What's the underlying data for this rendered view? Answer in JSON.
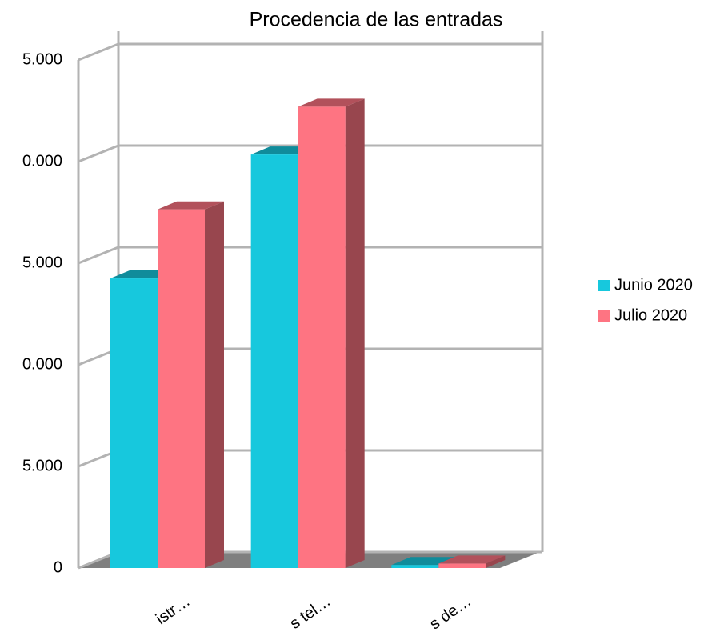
{
  "chart_data": {
    "type": "bar3d",
    "title": "Procedencia de las entradas",
    "categories": [
      "istr…",
      "s tel…",
      "s de…"
    ],
    "series": [
      {
        "name": "Junio 2020",
        "color": "#17c8dd",
        "values": [
          14250,
          20350,
          150
        ]
      },
      {
        "name": "Julio 2020",
        "color": "#fe7482",
        "values": [
          17650,
          22700,
          220
        ]
      }
    ],
    "ylim": [
      0,
      25000
    ],
    "yticks": [
      0,
      {
        "value": 5000,
        "label": "5.000"
      },
      {
        "value": 10000,
        "label": "0.000"
      },
      {
        "value": 15000,
        "label": "5.000"
      },
      {
        "value": 20000,
        "label": "0.000"
      },
      {
        "value": 25000,
        "label": "5.000"
      }
    ],
    "grid": true,
    "legend": "right"
  }
}
